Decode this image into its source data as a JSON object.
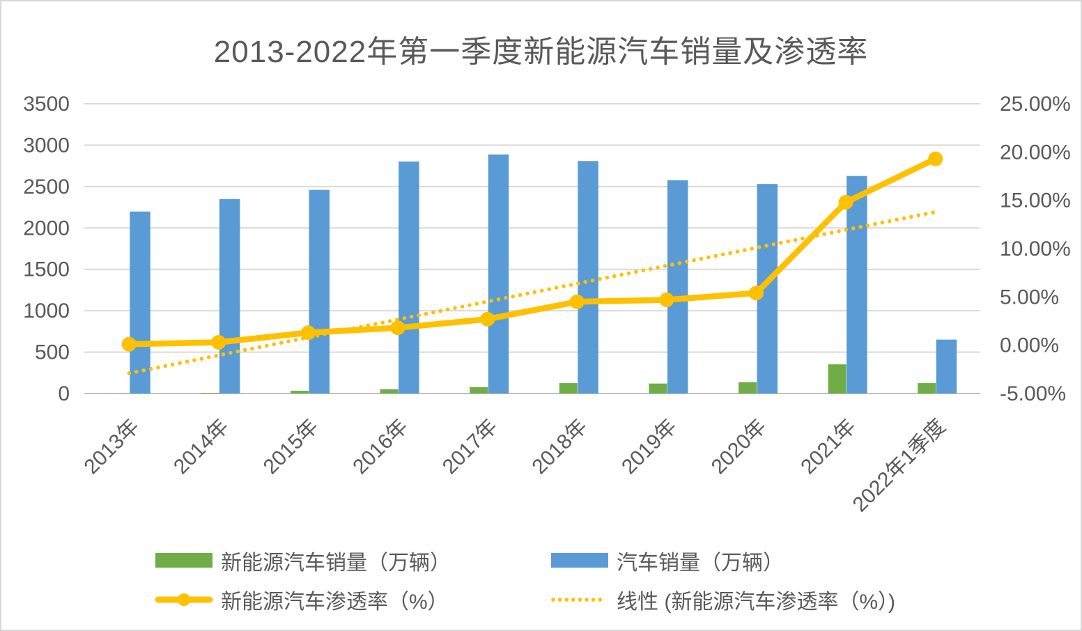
{
  "chart_data": {
    "type": "combo-bar-line",
    "title": "2013-2022年第一季度新能源汽车销量及渗透率",
    "categories": [
      "2013年",
      "2014年",
      "2015年",
      "2016年",
      "2017年",
      "2018年",
      "2019年",
      "2020年",
      "2021年",
      "2022年1季度"
    ],
    "series": [
      {
        "id": "nev-sales",
        "name": "新能源汽车销量（万辆）",
        "type": "bar",
        "axis": "left",
        "color": "#70AD47",
        "values": [
          1.8,
          7.5,
          33.1,
          50.7,
          77.7,
          125.6,
          120.6,
          136.7,
          352.1,
          125.7
        ]
      },
      {
        "id": "auto-sales",
        "name": "汽车销量（万辆）",
        "type": "bar",
        "axis": "left",
        "color": "#5B9BD5",
        "values": [
          2198.4,
          2349.2,
          2459.8,
          2802.8,
          2887.9,
          2808.1,
          2576.9,
          2531.1,
          2627.5,
          650.9
        ]
      },
      {
        "id": "penetration",
        "name": "新能源汽车渗透率（%）",
        "type": "line",
        "axis": "right",
        "color": "#FFC000",
        "values": [
          0.1,
          0.3,
          1.3,
          1.8,
          2.7,
          4.5,
          4.7,
          5.4,
          14.8,
          19.3
        ]
      },
      {
        "id": "trendline",
        "name": "线性 (新能源汽车渗透率（%）)",
        "type": "trendline",
        "axis": "right",
        "color": "#FFC000",
        "start": -2.9,
        "end": 13.8
      }
    ],
    "left_axis": {
      "min": 0,
      "max": 3500,
      "step": 500,
      "ticks": [
        0,
        500,
        1000,
        1500,
        2000,
        2500,
        3000,
        3500
      ],
      "labels": [
        "0",
        "500",
        "1000",
        "1500",
        "2000",
        "2500",
        "3000",
        "3500"
      ]
    },
    "right_axis": {
      "min": -5,
      "max": 25,
      "step": 5,
      "ticks": [
        -5,
        0,
        5,
        10,
        15,
        20,
        25
      ],
      "labels": [
        "-5.00%",
        "0.00%",
        "5.00%",
        "10.00%",
        "15.00%",
        "20.00%",
        "25.00%"
      ]
    },
    "grid": true,
    "legend_position": "bottom"
  },
  "colors": {
    "bar_blue": "#5B9BD5",
    "bar_green": "#70AD47",
    "line_gold": "#FFC000",
    "gridline": "#D9D9D9",
    "axis_line": "#BFBFBF",
    "text": "#595959",
    "frame_border": "#D9D9D9",
    "background": "#FFFFFF"
  }
}
